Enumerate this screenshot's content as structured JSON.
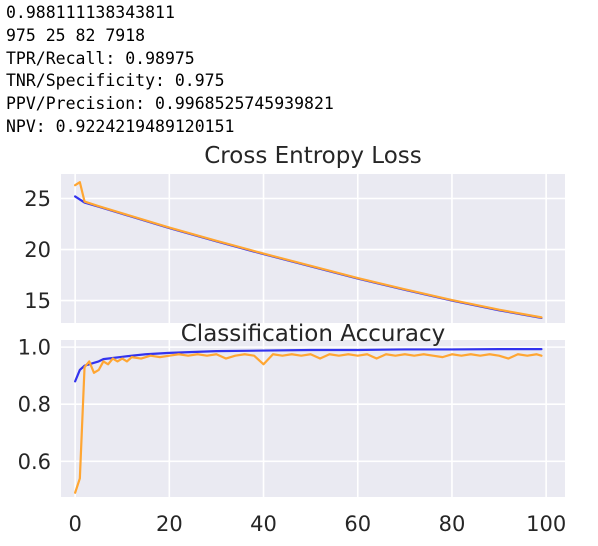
{
  "output_lines": [
    "0.988111138343811",
    "975 25 82 7918",
    "TPR/Recall: 0.98975",
    "TNR/Specificity: 0.975",
    "PPV/Precision: 0.9968525745939821",
    "NPV: 0.9224219489120151"
  ],
  "colors": {
    "plot_background": "#EAEAF2",
    "grid": "#FFFFFF",
    "tick_text": "#262626",
    "series_blue": "#3333EE",
    "series_orange": "#FFA633"
  },
  "chart_data": [
    {
      "type": "line",
      "title": "Cross Entropy Loss",
      "xlabel": "",
      "ylabel": "",
      "xlim": [
        -3,
        104
      ],
      "ylim": [
        12.8,
        27.4
      ],
      "xticks": [
        "0",
        "20",
        "40",
        "60",
        "80",
        "100"
      ],
      "yticks": [
        "15",
        "20",
        "25"
      ],
      "grid": true,
      "legend": "none",
      "series": [
        {
          "color": "#3333EE",
          "x": [
            0,
            2,
            5,
            10,
            20,
            30,
            40,
            50,
            60,
            70,
            80,
            90,
            99
          ],
          "values": [
            25.2,
            24.6,
            24.2,
            23.5,
            22.1,
            20.8,
            19.55,
            18.35,
            17.15,
            16.05,
            15.0,
            14.05,
            13.3
          ]
        },
        {
          "color": "#FFA633",
          "x": [
            0,
            1,
            2,
            5,
            10,
            20,
            30,
            40,
            50,
            60,
            70,
            80,
            90,
            99
          ],
          "values": [
            26.3,
            26.6,
            24.7,
            24.25,
            23.55,
            22.15,
            20.85,
            19.6,
            18.4,
            17.2,
            16.1,
            15.05,
            14.1,
            13.35
          ]
        }
      ]
    },
    {
      "type": "line",
      "title": "Classification Accuracy",
      "xlabel": "",
      "ylabel": "",
      "xlim": [
        -3,
        104
      ],
      "ylim": [
        0.475,
        1.025
      ],
      "xticks": [
        "0",
        "20",
        "40",
        "60",
        "80",
        "100"
      ],
      "yticks": [
        "0.6",
        "0.8",
        "1.0"
      ],
      "grid": true,
      "legend": "none",
      "series": [
        {
          "color": "#3333EE",
          "x": [
            0,
            1,
            2,
            3,
            4,
            5,
            6,
            8,
            10,
            12,
            15,
            20,
            25,
            30,
            40,
            50,
            60,
            70,
            80,
            90,
            99
          ],
          "values": [
            0.88,
            0.92,
            0.935,
            0.94,
            0.945,
            0.95,
            0.958,
            0.962,
            0.966,
            0.97,
            0.975,
            0.98,
            0.983,
            0.986,
            0.988,
            0.99,
            0.99,
            0.992,
            0.992,
            0.993,
            0.993
          ]
        },
        {
          "color": "#FFA633",
          "x": [
            0,
            1,
            2,
            3,
            4,
            5,
            6,
            7,
            8,
            9,
            10,
            11,
            12,
            14,
            16,
            18,
            20,
            22,
            24,
            26,
            28,
            30,
            32,
            34,
            36,
            38,
            40,
            42,
            44,
            46,
            48,
            50,
            52,
            54,
            56,
            58,
            60,
            62,
            64,
            66,
            68,
            70,
            72,
            74,
            76,
            78,
            80,
            82,
            84,
            86,
            88,
            90,
            92,
            94,
            96,
            98,
            99
          ],
          "values": [
            0.49,
            0.54,
            0.93,
            0.95,
            0.91,
            0.92,
            0.95,
            0.94,
            0.96,
            0.95,
            0.96,
            0.95,
            0.965,
            0.96,
            0.97,
            0.965,
            0.97,
            0.975,
            0.97,
            0.975,
            0.97,
            0.975,
            0.96,
            0.97,
            0.975,
            0.97,
            0.94,
            0.975,
            0.97,
            0.975,
            0.97,
            0.975,
            0.96,
            0.975,
            0.97,
            0.975,
            0.97,
            0.975,
            0.96,
            0.975,
            0.97,
            0.975,
            0.97,
            0.975,
            0.97,
            0.965,
            0.975,
            0.97,
            0.975,
            0.97,
            0.975,
            0.97,
            0.96,
            0.975,
            0.97,
            0.975,
            0.97
          ]
        }
      ]
    }
  ]
}
